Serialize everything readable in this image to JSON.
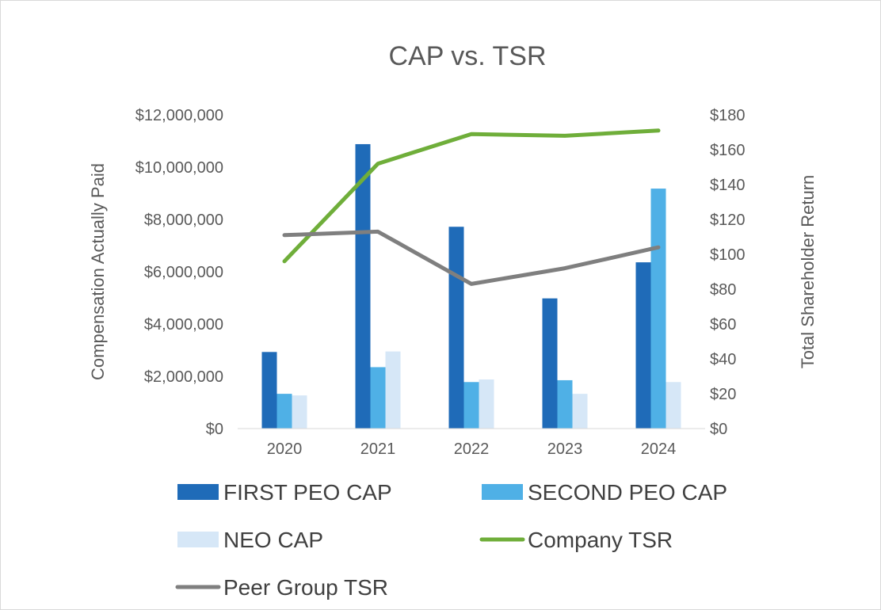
{
  "chart_data": {
    "type": "bar+line",
    "title": "CAP vs. TSR",
    "categories": [
      "2020",
      "2021",
      "2022",
      "2023",
      "2024"
    ],
    "y_left": {
      "label": "Compensation Actually Paid",
      "lim": [
        0,
        12000000
      ],
      "ticks": [
        "$0",
        "$2,000,000",
        "$4,000,000",
        "$6,000,000",
        "$8,000,000",
        "$10,000,000",
        "$12,000,000"
      ],
      "tick_values": [
        0,
        2000000,
        4000000,
        6000000,
        8000000,
        10000000,
        12000000
      ]
    },
    "y_right": {
      "label": "Total Shareholder Return",
      "lim": [
        0,
        180
      ],
      "ticks": [
        "$0",
        "$20",
        "$40",
        "$60",
        "$80",
        "$100",
        "$120",
        "$140",
        "$160",
        "$180"
      ],
      "tick_values": [
        0,
        20,
        40,
        60,
        80,
        100,
        120,
        140,
        160,
        180
      ]
    },
    "bar_series": [
      {
        "name": "FIRST PEO CAP",
        "color": "#1f6bb8",
        "values": [
          2930000,
          10880000,
          7720000,
          4980000,
          6360000
        ]
      },
      {
        "name": "SECOND PEO CAP",
        "color": "#4fb0e6",
        "values": [
          1330000,
          2350000,
          1780000,
          1850000,
          9180000
        ]
      },
      {
        "name": "NEO CAP",
        "color": "#d6e7f7",
        "values": [
          1270000,
          2950000,
          1880000,
          1330000,
          1780000
        ]
      }
    ],
    "line_series": [
      {
        "name": "Company TSR",
        "color": "#6fae3a",
        "axis": "right",
        "values": [
          96,
          152,
          169,
          168,
          171
        ]
      },
      {
        "name": "Peer Group TSR",
        "color": "#7f7f7f",
        "axis": "right",
        "values": [
          111,
          113,
          83,
          92,
          104
        ]
      }
    ],
    "legend": [
      "FIRST PEO CAP",
      "SECOND PEO CAP",
      "NEO CAP",
      "Company TSR",
      "Peer Group TSR"
    ],
    "legend_position": "bottom",
    "grid": false
  }
}
